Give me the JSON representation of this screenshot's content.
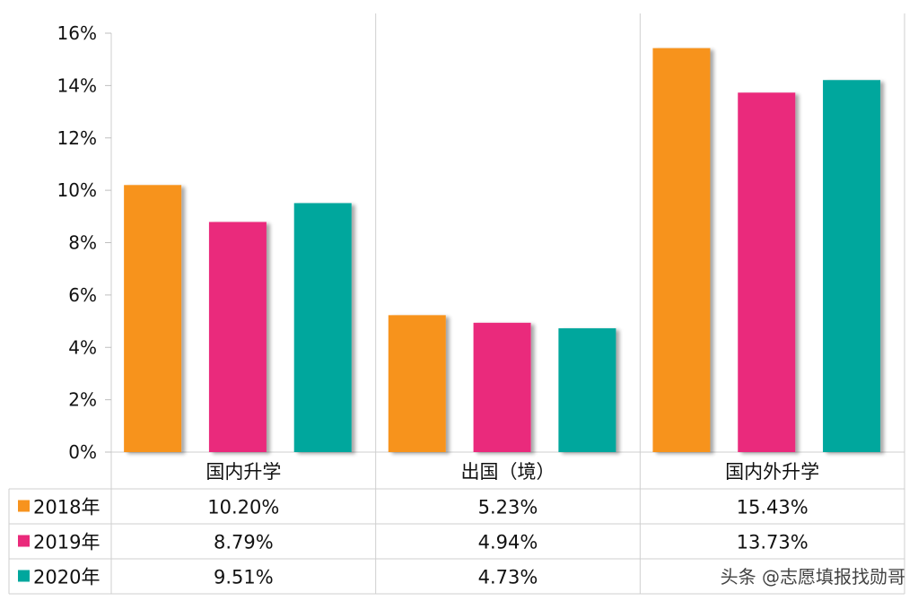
{
  "chart_data": {
    "type": "bar",
    "categories": [
      "国内升学",
      "出国（境）",
      "国内外升学"
    ],
    "series": [
      {
        "name": "2018年",
        "color": "#F7931E",
        "values": [
          10.2,
          5.23,
          15.43
        ],
        "labels": [
          "10.20%",
          "5.23%",
          "15.43%"
        ]
      },
      {
        "name": "2019年",
        "color": "#EA2A7B",
        "values": [
          8.79,
          4.94,
          13.73
        ],
        "labels": [
          "8.79%",
          "4.94%",
          "13.73%"
        ]
      },
      {
        "name": "2020年",
        "color": "#00A79D",
        "values": [
          9.51,
          4.73,
          14.21
        ],
        "labels": [
          "9.51%",
          "4.73%",
          ""
        ]
      }
    ],
    "ylim": [
      0,
      16
    ],
    "yticks": [
      "0%",
      "2%",
      "4%",
      "6%",
      "8%",
      "10%",
      "12%",
      "14%",
      "16%"
    ],
    "ytick_values": [
      0,
      2,
      4,
      6,
      8,
      10,
      12,
      14,
      16
    ],
    "data_table": true
  },
  "watermark": "头条 @志愿填报找勋哥"
}
